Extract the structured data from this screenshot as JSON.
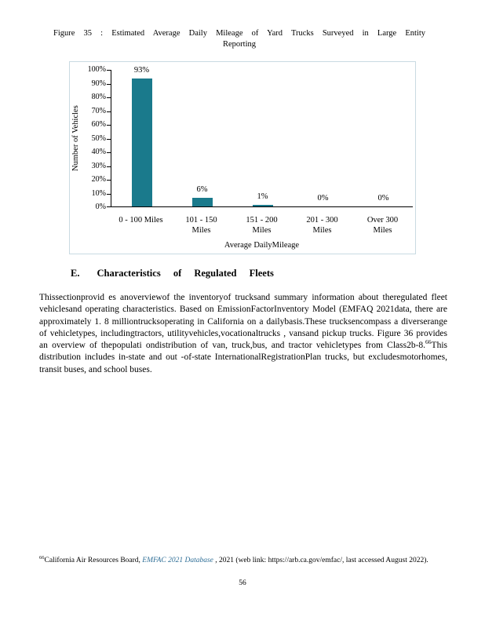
{
  "figure": {
    "caption_line1": "Figure 35 : Estimated Average Daily Mileage of Yard Trucks Surveyed in Large Entity",
    "caption_line2": "Reporting"
  },
  "chart_data": {
    "type": "bar",
    "title": "",
    "categories": [
      "0 - 100 Miles",
      "101 - 150\nMiles",
      "151 - 200\nMiles",
      "201 - 300\nMiles",
      "Over 300\nMiles"
    ],
    "values": [
      93,
      6,
      1,
      0,
      0
    ],
    "data_labels": [
      "93%",
      "6%",
      "1%",
      "0%",
      "0%"
    ],
    "xlabel": "Average DailyMileage",
    "ylabel": "Number of Vehicles",
    "ylim": [
      0,
      100
    ],
    "yticks": [
      "0%",
      "10%",
      "20%",
      "30%",
      "40%",
      "50%",
      "60%",
      "70%",
      "80%",
      "90%",
      "100%"
    ],
    "bar_color": "#1a7a8c",
    "grid": false,
    "legend": "none"
  },
  "section": {
    "letter": "E.",
    "heading": "Characteristics of Regulated Fleets"
  },
  "body": {
    "part1": "Thissectionprovid es anoverviewof the inventoryof trucksand summary information about theregulated fleet vehiclesand operating characteristics. Based on EmissionFactorInventory Model (EMFAQ 2021data, there are approximately 1. 8 milliontrucksoperating in California on a dailybasis.These trucksencompass a diverserange of vehicletypes, includingtractors, utilityvehicles,vocationaltrucks , vansand pickup trucks. Figure 36 provides an overview of thepopulati ondistribution of van, truck,bus, and tractor vehicletypes from Class2b-8.",
    "sup": "66",
    "part2": "This distribution includes in-state and out -of-state InternationalRegistrationPlan trucks, but excludesmotorhomes, transit buses, and school buses."
  },
  "footnote": {
    "marker": "66",
    "text1": "California Air Resources Board, ",
    "link_text": "EMFAC 2021 Database",
    "link_color": "#2e6e96",
    "text2": " , 2021 (web link: https://arb.ca.gov/emfac/, last accessed August 2022)."
  },
  "page": {
    "number": "56"
  }
}
